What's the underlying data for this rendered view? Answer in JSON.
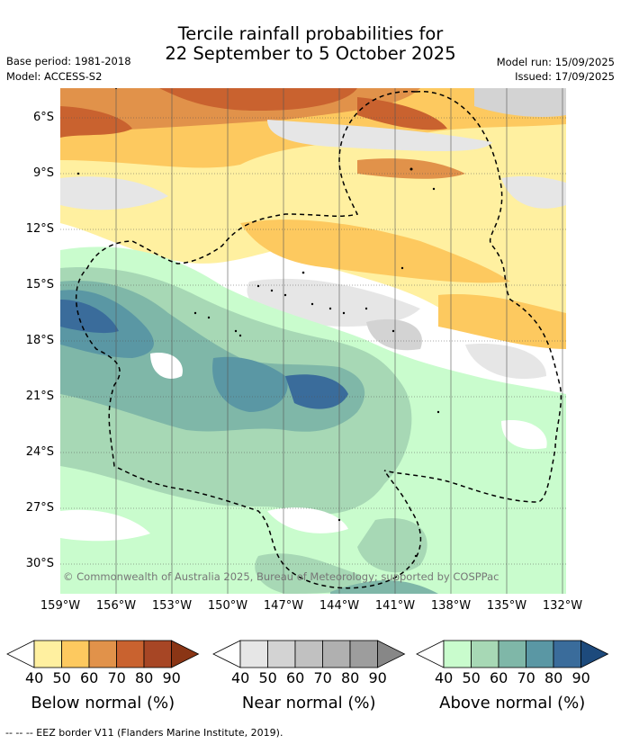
{
  "title": {
    "line1": "Tercile rainfall probabilities for",
    "line2": "22 September to 5 October 2025"
  },
  "meta": {
    "base_period": "Base period: 1981-2018",
    "model": "Model: ACCESS-S2",
    "model_run": "Model run: 15/09/2025",
    "issued": "Issued: 17/09/2025"
  },
  "map": {
    "lat_labels": [
      "6°S",
      "9°S",
      "12°S",
      "15°S",
      "18°S",
      "21°S",
      "24°S",
      "27°S",
      "30°S"
    ],
    "lon_labels": [
      "159°W",
      "156°W",
      "153°W",
      "150°W",
      "147°W",
      "144°W",
      "141°W",
      "138°W",
      "135°W",
      "132°W"
    ],
    "credit": "© Commonwealth of Australia 2025, Bureau of Meteorology; supported by COSPPac"
  },
  "legends": [
    {
      "title": "Below normal (%)",
      "ticks": [
        "40",
        "50",
        "60",
        "70",
        "80",
        "90"
      ],
      "colors": [
        "#fff0a0",
        "#fdc95f",
        "#e1924a",
        "#c9622f",
        "#a74625",
        "#8a3515"
      ]
    },
    {
      "title": "Near normal (%)",
      "ticks": [
        "40",
        "50",
        "60",
        "70",
        "80",
        "90"
      ],
      "colors": [
        "#e6e6e6",
        "#d3d3d3",
        "#c1c1c1",
        "#b0b0b0",
        "#9d9d9d",
        "#878787"
      ]
    },
    {
      "title": "Above normal (%)",
      "ticks": [
        "40",
        "50",
        "60",
        "70",
        "80",
        "90"
      ],
      "colors": [
        "#c9fccd",
        "#a7d8b5",
        "#7fb7a8",
        "#5a97a4",
        "#3a6c9b",
        "#1d4a7c"
      ]
    }
  ],
  "footer": "-- -- -- EEZ border V11 (Flanders Marine Institute, 2019)."
}
